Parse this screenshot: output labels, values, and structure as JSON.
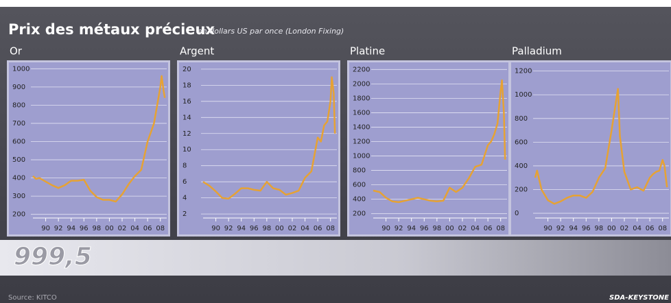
{
  "header": {
    "title": "Prix des métaux précieux",
    "subtitle": "en dollars US par once  (London Fixing)"
  },
  "banner": "999,5",
  "footer": {
    "source": "Source: KITCO",
    "credit": "SDA-KEYSTONE"
  },
  "chart_data": [
    {
      "type": "line",
      "title": "Or",
      "color": "#e6a234",
      "grid": true,
      "x": [
        1988,
        1988.5,
        1989,
        1990,
        1991,
        1992,
        1993,
        1994,
        1995,
        1996,
        1997,
        1998,
        1999,
        2000,
        2001,
        2002,
        2003,
        2004,
        2005,
        2006,
        2006.5,
        2007,
        2007.5,
        2008,
        2008.2,
        2008.5,
        2008.7
      ],
      "values": [
        410,
        395,
        400,
        380,
        360,
        345,
        360,
        385,
        385,
        390,
        330,
        295,
        280,
        280,
        270,
        310,
        365,
        410,
        445,
        600,
        650,
        700,
        800,
        900,
        960,
        880,
        840
      ],
      "xlim": [
        1988,
        2009
      ],
      "ylim": [
        180,
        1020
      ],
      "xticks": [
        {
          "value": 1990,
          "label": "90"
        },
        {
          "value": 1992,
          "label": "92"
        },
        {
          "value": 1994,
          "label": "94"
        },
        {
          "value": 1996,
          "label": "96"
        },
        {
          "value": 1998,
          "label": "98"
        },
        {
          "value": 2000,
          "label": "00"
        },
        {
          "value": 2002,
          "label": "02"
        },
        {
          "value": 2004,
          "label": "04"
        },
        {
          "value": 2006,
          "label": "06"
        },
        {
          "value": 2008,
          "label": "08"
        }
      ],
      "yticks": [
        200,
        300,
        400,
        500,
        600,
        700,
        800,
        900,
        1000
      ]
    },
    {
      "type": "line",
      "title": "Argent",
      "color": "#e6a234",
      "grid": true,
      "x": [
        1988,
        1989,
        1990,
        1991,
        1992,
        1993,
        1994,
        1995,
        1996,
        1997,
        1998,
        1999,
        2000,
        2001,
        2002,
        2003,
        2004,
        2005,
        2006,
        2006.5,
        2007,
        2007.5,
        2008,
        2008.2,
        2008.5,
        2008.7
      ],
      "values": [
        6,
        5.5,
        4.8,
        4,
        3.9,
        4.5,
        5.2,
        5.2,
        5,
        4.9,
        6,
        5.2,
        5,
        4.4,
        4.6,
        4.9,
        6.5,
        7.3,
        11.5,
        11,
        13,
        13.5,
        16,
        19,
        17,
        12
      ],
      "xlim": [
        1988,
        2009
      ],
      "ylim": [
        1.5,
        20.5
      ],
      "xticks": [
        {
          "value": 1990,
          "label": "90"
        },
        {
          "value": 1992,
          "label": "92"
        },
        {
          "value": 1994,
          "label": "94"
        },
        {
          "value": 1996,
          "label": "96"
        },
        {
          "value": 1998,
          "label": "98"
        },
        {
          "value": 2000,
          "label": "00"
        },
        {
          "value": 2002,
          "label": "02"
        },
        {
          "value": 2004,
          "label": "04"
        },
        {
          "value": 2006,
          "label": "06"
        },
        {
          "value": 2008,
          "label": "08"
        }
      ],
      "yticks": [
        2,
        4,
        6,
        8,
        10,
        12,
        14,
        16,
        18,
        20
      ]
    },
    {
      "type": "line",
      "title": "Platine",
      "color": "#e6a234",
      "grid": true,
      "x": [
        1988,
        1989,
        1990,
        1991,
        1992,
        1993,
        1994,
        1995,
        1996,
        1997,
        1998,
        1999,
        2000,
        2001,
        2002,
        2003,
        2004,
        2005,
        2006,
        2006.5,
        2007,
        2007.5,
        2008,
        2008.2,
        2008.5,
        2008.7
      ],
      "values": [
        520,
        500,
        420,
        370,
        360,
        380,
        400,
        420,
        400,
        380,
        370,
        380,
        560,
        500,
        560,
        690,
        850,
        880,
        1150,
        1200,
        1300,
        1450,
        1900,
        2050,
        1600,
        950
      ],
      "xlim": [
        1988,
        2009
      ],
      "ylim": [
        140,
        2260
      ],
      "xticks": [
        {
          "value": 1990,
          "label": "90"
        },
        {
          "value": 1992,
          "label": "92"
        },
        {
          "value": 1994,
          "label": "94"
        },
        {
          "value": 1996,
          "label": "96"
        },
        {
          "value": 1998,
          "label": "98"
        },
        {
          "value": 2000,
          "label": "00"
        },
        {
          "value": 2002,
          "label": "02"
        },
        {
          "value": 2004,
          "label": "04"
        },
        {
          "value": 2006,
          "label": "06"
        },
        {
          "value": 2008,
          "label": "08"
        }
      ],
      "yticks": [
        200,
        400,
        600,
        800,
        1000,
        1200,
        1400,
        1600,
        1800,
        2000,
        2200
      ]
    },
    {
      "type": "line",
      "title": "Palladium",
      "color": "#e6a234",
      "grid": true,
      "x": [
        1988,
        1988.3,
        1989,
        1990,
        1991,
        1992,
        1993,
        1994,
        1995,
        1996,
        1997,
        1998,
        1999,
        2000,
        2001,
        2001.3,
        2002,
        2003,
        2004,
        2005,
        2006,
        2006.5,
        2007,
        2007.5,
        2008,
        2008.3,
        2008.7
      ],
      "values": [
        300,
        360,
        200,
        110,
        80,
        100,
        130,
        150,
        150,
        130,
        180,
        300,
        380,
        700,
        1050,
        650,
        350,
        200,
        220,
        190,
        300,
        330,
        350,
        360,
        450,
        400,
        220
      ],
      "xlim": [
        1988,
        2009
      ],
      "ylim": [
        -40,
        1250
      ],
      "xticks": [
        {
          "value": 1990,
          "label": "90"
        },
        {
          "value": 1992,
          "label": "92"
        },
        {
          "value": 1994,
          "label": "94"
        },
        {
          "value": 1996,
          "label": "96"
        },
        {
          "value": 1998,
          "label": "98"
        },
        {
          "value": 2000,
          "label": "00"
        },
        {
          "value": 2002,
          "label": "02"
        },
        {
          "value": 2004,
          "label": "04"
        },
        {
          "value": 2006,
          "label": "06"
        },
        {
          "value": 2008,
          "label": "08"
        }
      ],
      "yticks": [
        0,
        200,
        400,
        600,
        800,
        1000,
        1200
      ]
    }
  ]
}
